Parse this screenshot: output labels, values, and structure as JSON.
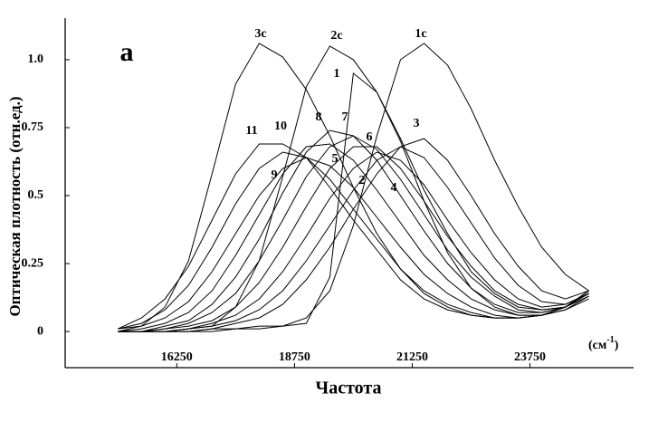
{
  "chart_data": {
    "type": "line",
    "annotation": "а",
    "y_label": "Оптическая плотность (отн.ед.)",
    "x_label": "Частота",
    "x_unit": {
      "open": "(см",
      "sup": "-1",
      "close": ")"
    },
    "xlim": [
      13880,
      25950
    ],
    "ylim": [
      -0.133,
      1.153
    ],
    "xticks": [
      16250,
      18750,
      21250,
      23750
    ],
    "yticks": [
      0,
      0.25,
      0.5,
      0.75,
      {
        "value": 1,
        "label": "1.0"
      }
    ],
    "x": [
      15000,
      15500,
      16000,
      16500,
      17000,
      17500,
      18000,
      18500,
      19000,
      19500,
      20000,
      20500,
      21000,
      21500,
      22000,
      22500,
      23000,
      23500,
      24000,
      24500,
      25000
    ],
    "series": [
      {
        "name": "1c",
        "color": "#000000",
        "values": [
          0,
          0,
          0,
          0,
          0,
          0.01,
          0.01,
          0.02,
          0.05,
          0.15,
          0.39,
          0.72,
          1.0,
          1.06,
          0.98,
          0.82,
          0.63,
          0.46,
          0.31,
          0.21,
          0.15
        ]
      },
      {
        "name": "2c",
        "color": "#000000",
        "values": [
          0,
          0,
          0,
          0.01,
          0.02,
          0.09,
          0.26,
          0.57,
          0.9,
          1.05,
          1.0,
          0.88,
          0.71,
          0.52,
          0.36,
          0.22,
          0.14,
          0.09,
          0.08,
          0.09,
          0.13
        ]
      },
      {
        "name": "3c",
        "color": "#000000",
        "values": [
          0,
          0.02,
          0.09,
          0.26,
          0.58,
          0.91,
          1.06,
          1.01,
          0.89,
          0.72,
          0.53,
          0.36,
          0.23,
          0.14,
          0.09,
          0.06,
          0.05,
          0.05,
          0.06,
          0.08,
          0.12
        ]
      },
      {
        "name": "1",
        "color": "#000000",
        "values": [
          0,
          0,
          0,
          0,
          0.01,
          0.01,
          0.02,
          0.02,
          0.03,
          0.2,
          0.95,
          0.88,
          0.7,
          0.48,
          0.29,
          0.16,
          0.09,
          0.06,
          0.06,
          0.08,
          0.13
        ]
      },
      {
        "name": "2",
        "color": "#000000",
        "values": [
          0,
          0,
          0,
          0.01,
          0.02,
          0.04,
          0.08,
          0.15,
          0.26,
          0.39,
          0.52,
          0.63,
          0.68,
          0.64,
          0.53,
          0.4,
          0.27,
          0.17,
          0.11,
          0.1,
          0.14
        ]
      },
      {
        "name": "3",
        "color": "#000000",
        "values": [
          0,
          0,
          0,
          0,
          0.01,
          0.03,
          0.05,
          0.1,
          0.19,
          0.31,
          0.45,
          0.58,
          0.68,
          0.71,
          0.63,
          0.5,
          0.36,
          0.24,
          0.15,
          0.12,
          0.15
        ]
      },
      {
        "name": "4",
        "color": "#000000",
        "values": [
          0,
          0,
          0,
          0.01,
          0.03,
          0.06,
          0.12,
          0.22,
          0.35,
          0.49,
          0.6,
          0.66,
          0.63,
          0.54,
          0.41,
          0.29,
          0.19,
          0.12,
          0.09,
          0.1,
          0.14
        ]
      },
      {
        "name": "5",
        "color": "#000000",
        "values": [
          0,
          0,
          0.01,
          0.02,
          0.04,
          0.09,
          0.18,
          0.31,
          0.46,
          0.6,
          0.68,
          0.68,
          0.6,
          0.48,
          0.35,
          0.24,
          0.15,
          0.1,
          0.08,
          0.09,
          0.14
        ]
      },
      {
        "name": "6",
        "color": "#000000",
        "values": [
          0,
          0,
          0.01,
          0.03,
          0.07,
          0.14,
          0.26,
          0.41,
          0.57,
          0.68,
          0.72,
          0.67,
          0.56,
          0.43,
          0.3,
          0.2,
          0.13,
          0.08,
          0.07,
          0.09,
          0.15
        ]
      },
      {
        "name": "7",
        "color": "#000000",
        "values": [
          0,
          0,
          0.02,
          0.04,
          0.1,
          0.2,
          0.34,
          0.51,
          0.66,
          0.74,
          0.72,
          0.63,
          0.5,
          0.37,
          0.25,
          0.16,
          0.1,
          0.07,
          0.07,
          0.09,
          0.15
        ]
      },
      {
        "name": "8",
        "color": "#000000",
        "values": [
          0,
          0.01,
          0.03,
          0.07,
          0.15,
          0.28,
          0.43,
          0.58,
          0.68,
          0.69,
          0.63,
          0.52,
          0.4,
          0.28,
          0.19,
          0.12,
          0.08,
          0.06,
          0.06,
          0.09,
          0.15
        ]
      },
      {
        "name": "9",
        "color": "#000000",
        "values": [
          0.01,
          0.02,
          0.05,
          0.11,
          0.22,
          0.36,
          0.5,
          0.6,
          0.64,
          0.61,
          0.53,
          0.42,
          0.31,
          0.21,
          0.14,
          0.09,
          0.06,
          0.05,
          0.06,
          0.09,
          0.14
        ]
      },
      {
        "name": "10",
        "color": "#000000",
        "values": [
          0.01,
          0.03,
          0.08,
          0.17,
          0.31,
          0.47,
          0.6,
          0.66,
          0.64,
          0.56,
          0.45,
          0.34,
          0.23,
          0.15,
          0.1,
          0.07,
          0.05,
          0.05,
          0.06,
          0.09,
          0.14
        ]
      },
      {
        "name": "11",
        "color": "#000000",
        "values": [
          0.01,
          0.05,
          0.12,
          0.24,
          0.41,
          0.58,
          0.69,
          0.69,
          0.64,
          0.53,
          0.41,
          0.3,
          0.19,
          0.12,
          0.08,
          0.06,
          0.05,
          0.05,
          0.06,
          0.09,
          0.14
        ]
      }
    ]
  }
}
